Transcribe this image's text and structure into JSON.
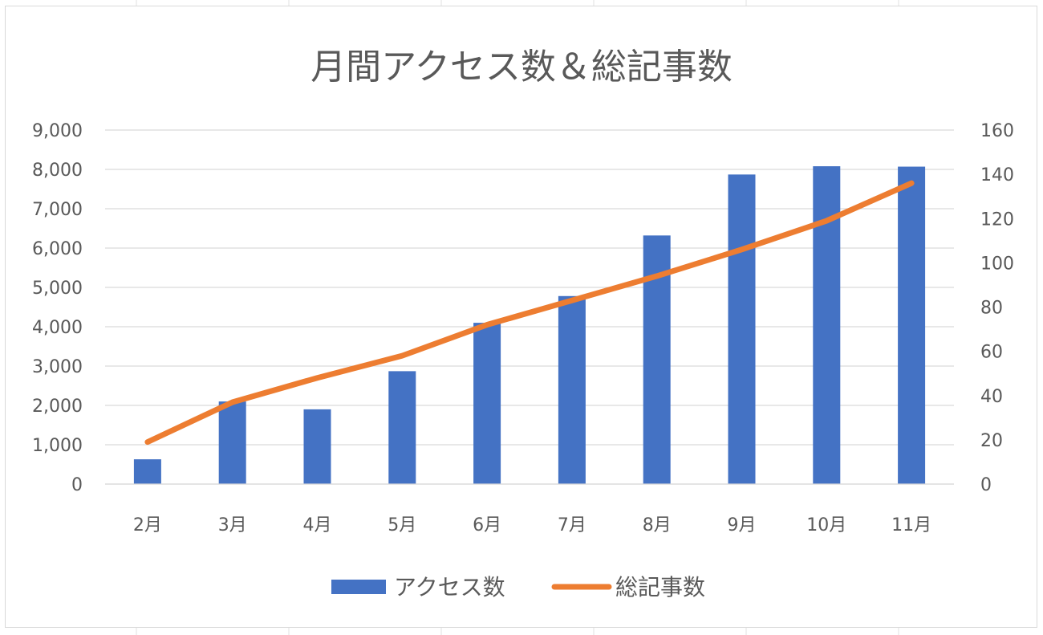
{
  "chart_data": {
    "type": "bar",
    "title": "月間アクセス数＆総記事数",
    "categories": [
      "2月",
      "3月",
      "4月",
      "5月",
      "6月",
      "7月",
      "8月",
      "9月",
      "10月",
      "11月"
    ],
    "series": [
      {
        "name": "アクセス数",
        "type": "bar",
        "axis": "left",
        "color": "#4472c4",
        "values": [
          630,
          2100,
          1900,
          2870,
          4100,
          4780,
          6320,
          7870,
          8080,
          8070
        ]
      },
      {
        "name": "総記事数",
        "type": "line",
        "axis": "right",
        "color": "#ed7d31",
        "values": [
          19,
          37,
          48,
          58,
          72,
          83,
          94,
          106,
          119,
          136
        ]
      }
    ],
    "y_left": {
      "min": 0,
      "max": 9000,
      "ticks": [
        "0",
        "1,000",
        "2,000",
        "3,000",
        "4,000",
        "5,000",
        "6,000",
        "7,000",
        "8,000",
        "9,000"
      ]
    },
    "y_right": {
      "min": 0,
      "max": 160,
      "ticks": [
        "0",
        "20",
        "40",
        "60",
        "80",
        "100",
        "120",
        "140",
        "160"
      ]
    },
    "grid": true,
    "legend": "bottom"
  }
}
